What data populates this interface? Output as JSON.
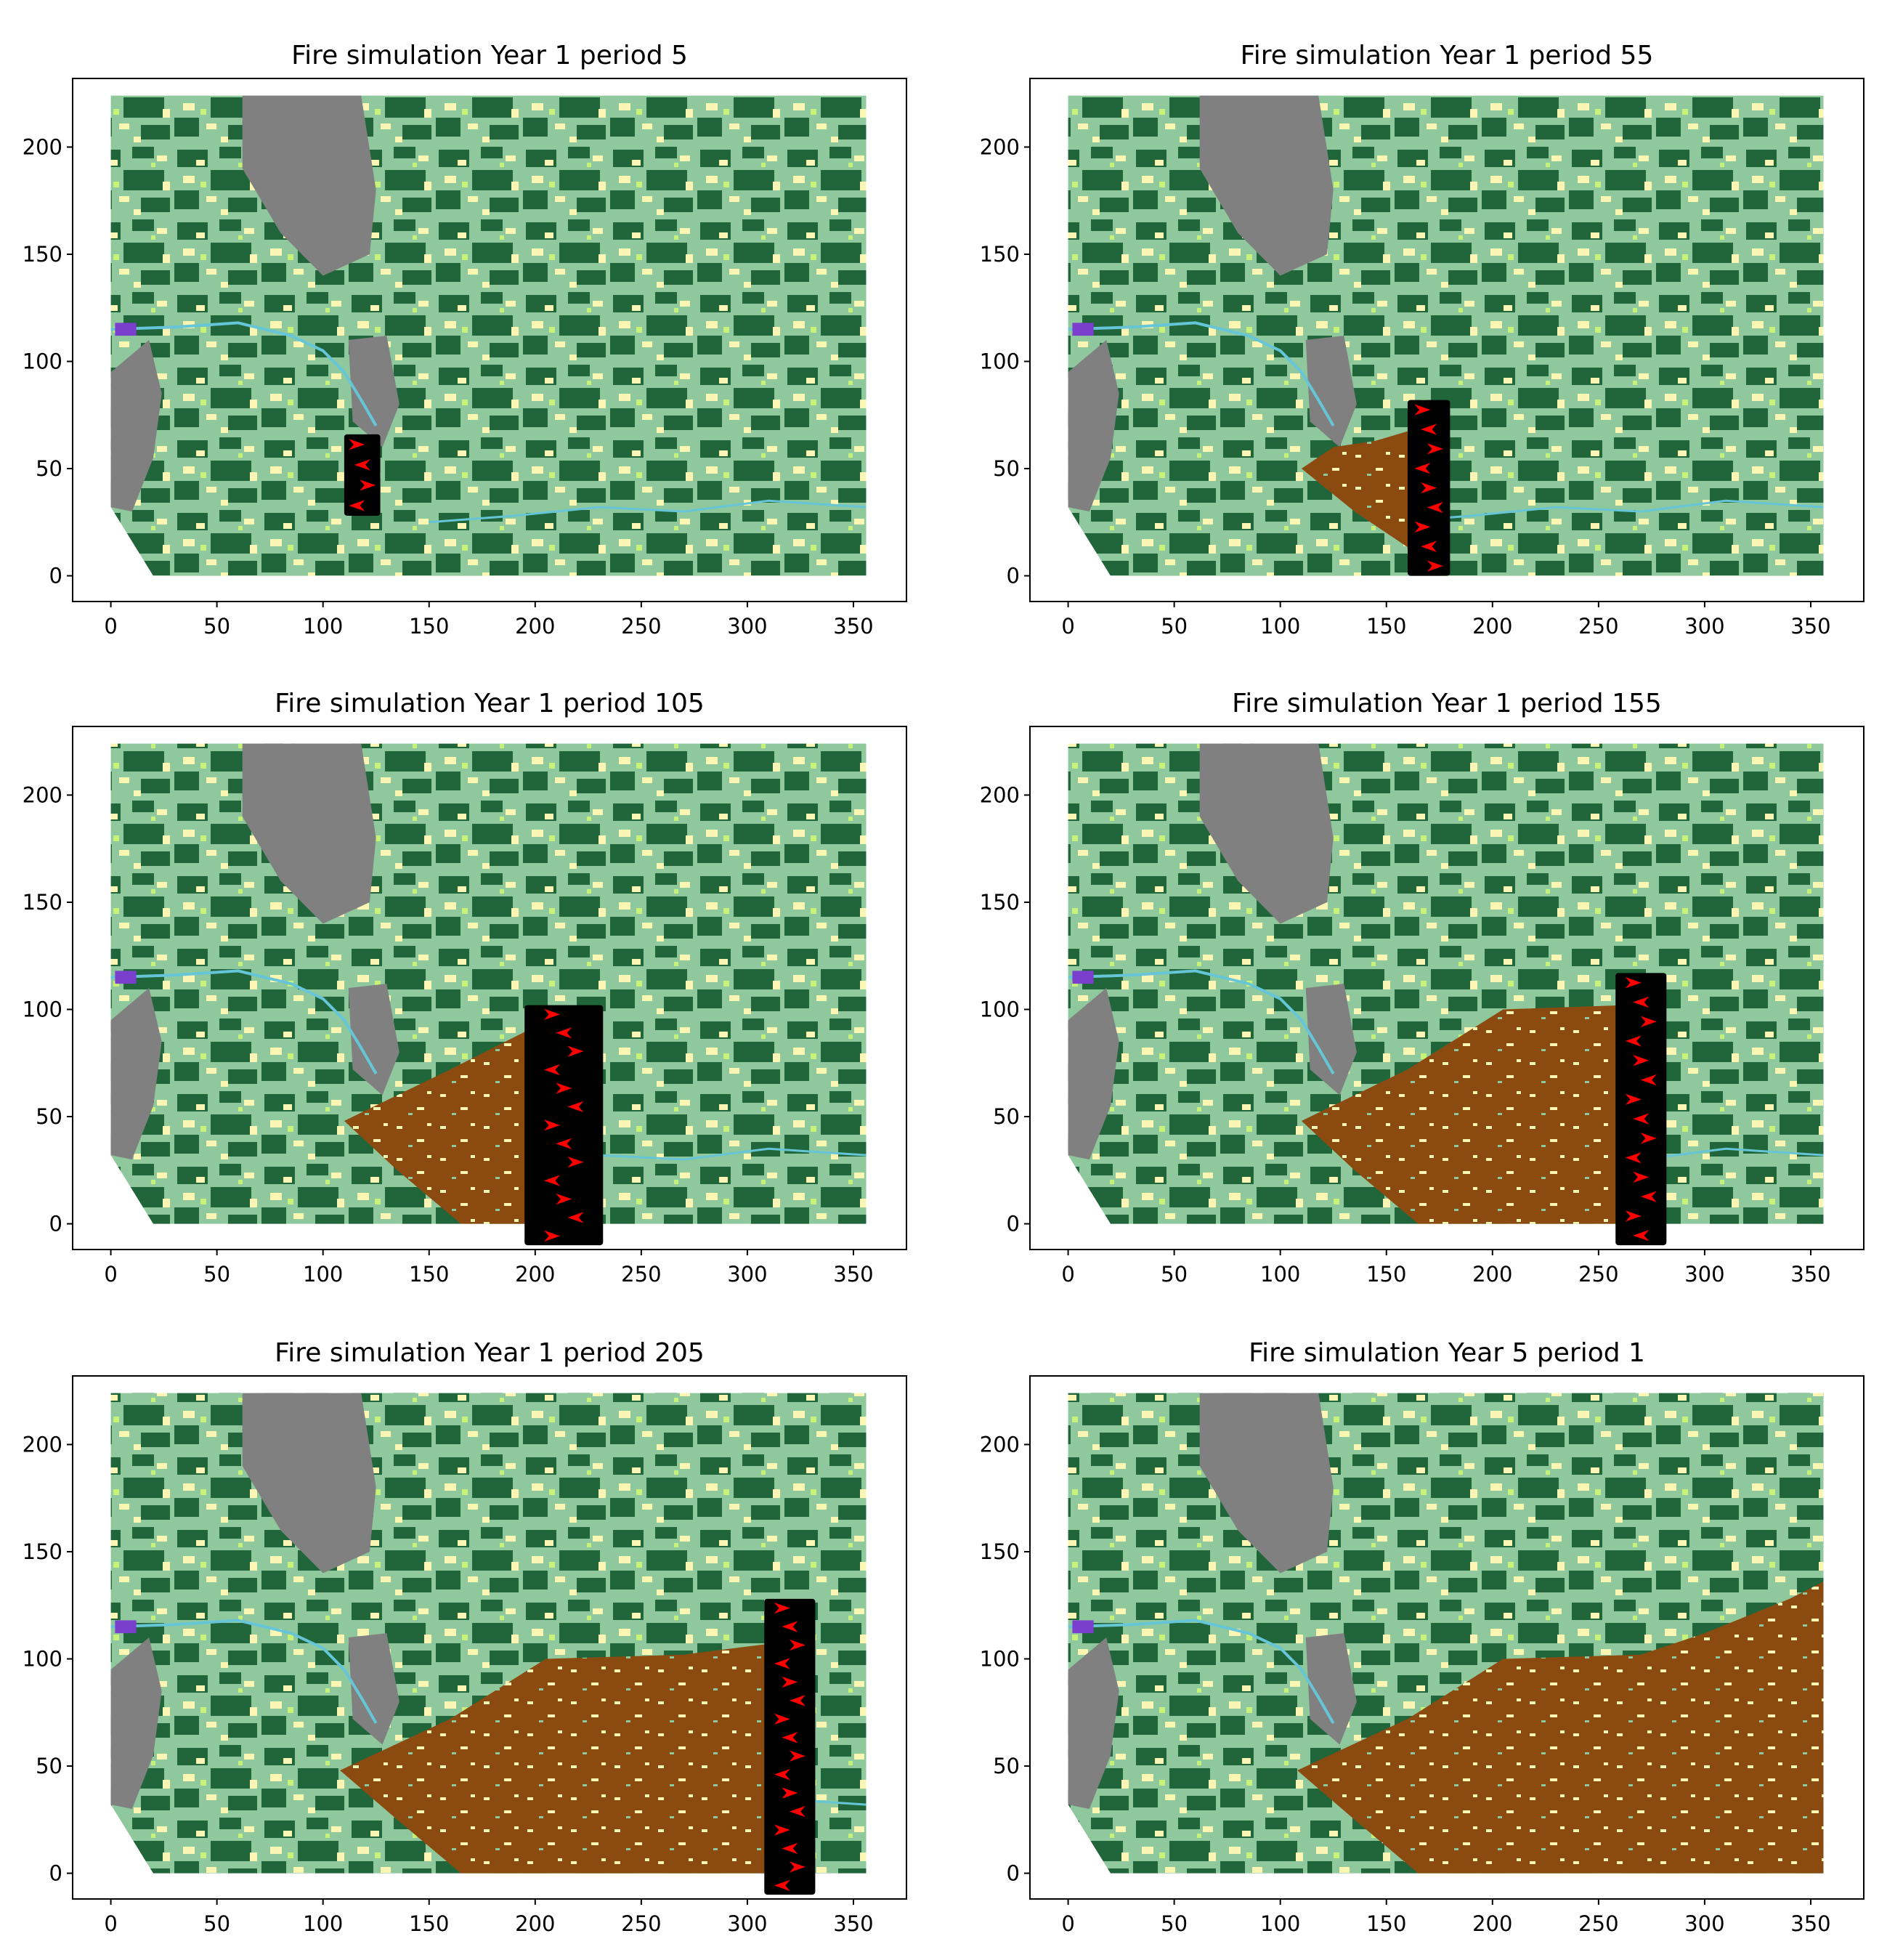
{
  "figure": {
    "background": "#ffffff"
  },
  "chart_data": [
    {
      "type": "heatmap",
      "title": "Fire simulation Year 1 period 5",
      "xlim": [
        -18,
        375
      ],
      "ylim": [
        -12,
        232
      ],
      "xticks": [
        "0",
        "50",
        "100",
        "150",
        "200",
        "250",
        "300",
        "350"
      ],
      "yticks": [
        "0",
        "50",
        "100",
        "150",
        "200"
      ],
      "burned_polygon": [],
      "fire_front": {
        "x_range": [
          110,
          127
        ],
        "y_range": [
          28,
          66
        ]
      }
    },
    {
      "type": "heatmap",
      "title": "Fire simulation Year 1 period 55",
      "xlim": [
        -18,
        375
      ],
      "ylim": [
        -12,
        232
      ],
      "xticks": [
        "0",
        "50",
        "100",
        "150",
        "200",
        "250",
        "300",
        "350"
      ],
      "yticks": [
        "0",
        "50",
        "100",
        "150",
        "200"
      ],
      "burned_polygon": [
        [
          110,
          50
        ],
        [
          125,
          60
        ],
        [
          145,
          63
        ],
        [
          162,
          68
        ],
        [
          162,
          12
        ],
        [
          150,
          20
        ],
        [
          135,
          30
        ]
      ],
      "fire_front": {
        "x_range": [
          160,
          180
        ],
        "y_range": [
          0,
          82
        ]
      }
    },
    {
      "type": "heatmap",
      "title": "Fire simulation Year 1 period 105",
      "xlim": [
        -18,
        375
      ],
      "ylim": [
        -12,
        232
      ],
      "xticks": [
        "0",
        "50",
        "100",
        "150",
        "200",
        "250",
        "300",
        "350"
      ],
      "yticks": [
        "0",
        "50",
        "100",
        "150",
        "200"
      ],
      "burned_polygon": [
        [
          110,
          48
        ],
        [
          160,
          72
        ],
        [
          200,
          92
        ],
        [
          218,
          88
        ],
        [
          218,
          0
        ],
        [
          165,
          0
        ],
        [
          135,
          25
        ]
      ],
      "fire_front": {
        "x_range": [
          195,
          232
        ],
        "y_range": [
          -10,
          102
        ]
      }
    },
    {
      "type": "heatmap",
      "title": "Fire simulation Year 1 period 155",
      "xlim": [
        -18,
        375
      ],
      "ylim": [
        -12,
        232
      ],
      "xticks": [
        "0",
        "50",
        "100",
        "150",
        "200",
        "250",
        "300",
        "350"
      ],
      "yticks": [
        "0",
        "50",
        "100",
        "150",
        "200"
      ],
      "burned_polygon": [
        [
          110,
          48
        ],
        [
          160,
          72
        ],
        [
          205,
          100
        ],
        [
          262,
          102
        ],
        [
          268,
          98
        ],
        [
          268,
          0
        ],
        [
          165,
          0
        ],
        [
          135,
          25
        ]
      ],
      "fire_front": {
        "x_range": [
          258,
          282
        ],
        "y_range": [
          -10,
          117
        ]
      }
    },
    {
      "type": "heatmap",
      "title": "Fire simulation Year 1 period 205",
      "xlim": [
        -18,
        375
      ],
      "ylim": [
        -12,
        232
      ],
      "xticks": [
        "0",
        "50",
        "100",
        "150",
        "200",
        "250",
        "300",
        "350"
      ],
      "yticks": [
        "0",
        "50",
        "100",
        "150",
        "200"
      ],
      "burned_polygon": [
        [
          108,
          48
        ],
        [
          160,
          72
        ],
        [
          205,
          100
        ],
        [
          270,
          102
        ],
        [
          318,
          108
        ],
        [
          318,
          0
        ],
        [
          165,
          0
        ],
        [
          135,
          25
        ]
      ],
      "fire_front": {
        "x_range": [
          308,
          332
        ],
        "y_range": [
          -10,
          128
        ]
      }
    },
    {
      "type": "heatmap",
      "title": "Fire simulation Year 5 period 1",
      "xlim": [
        -18,
        375
      ],
      "ylim": [
        -12,
        232
      ],
      "xticks": [
        "0",
        "50",
        "100",
        "150",
        "200",
        "250",
        "300",
        "350"
      ],
      "yticks": [
        "0",
        "50",
        "100",
        "150",
        "200"
      ],
      "burned_polygon": [
        [
          108,
          48
        ],
        [
          160,
          72
        ],
        [
          205,
          100
        ],
        [
          270,
          102
        ],
        [
          300,
          112
        ],
        [
          340,
          128
        ],
        [
          356,
          136
        ],
        [
          356,
          0
        ],
        [
          165,
          0
        ],
        [
          135,
          25
        ]
      ],
      "fire_front": null
    }
  ],
  "colors": {
    "light_green": "#8fc89c",
    "dark_green": "#21663a",
    "cream": "#fcf6b4",
    "grey": "#808080",
    "tan": "#c9b999",
    "lime": "#c7f27a",
    "river": "#66c6d8",
    "purple": "#7a3fcc",
    "burned": "#8b4a0f",
    "fire_black": "#000000",
    "fire_red": "#ff0000"
  }
}
